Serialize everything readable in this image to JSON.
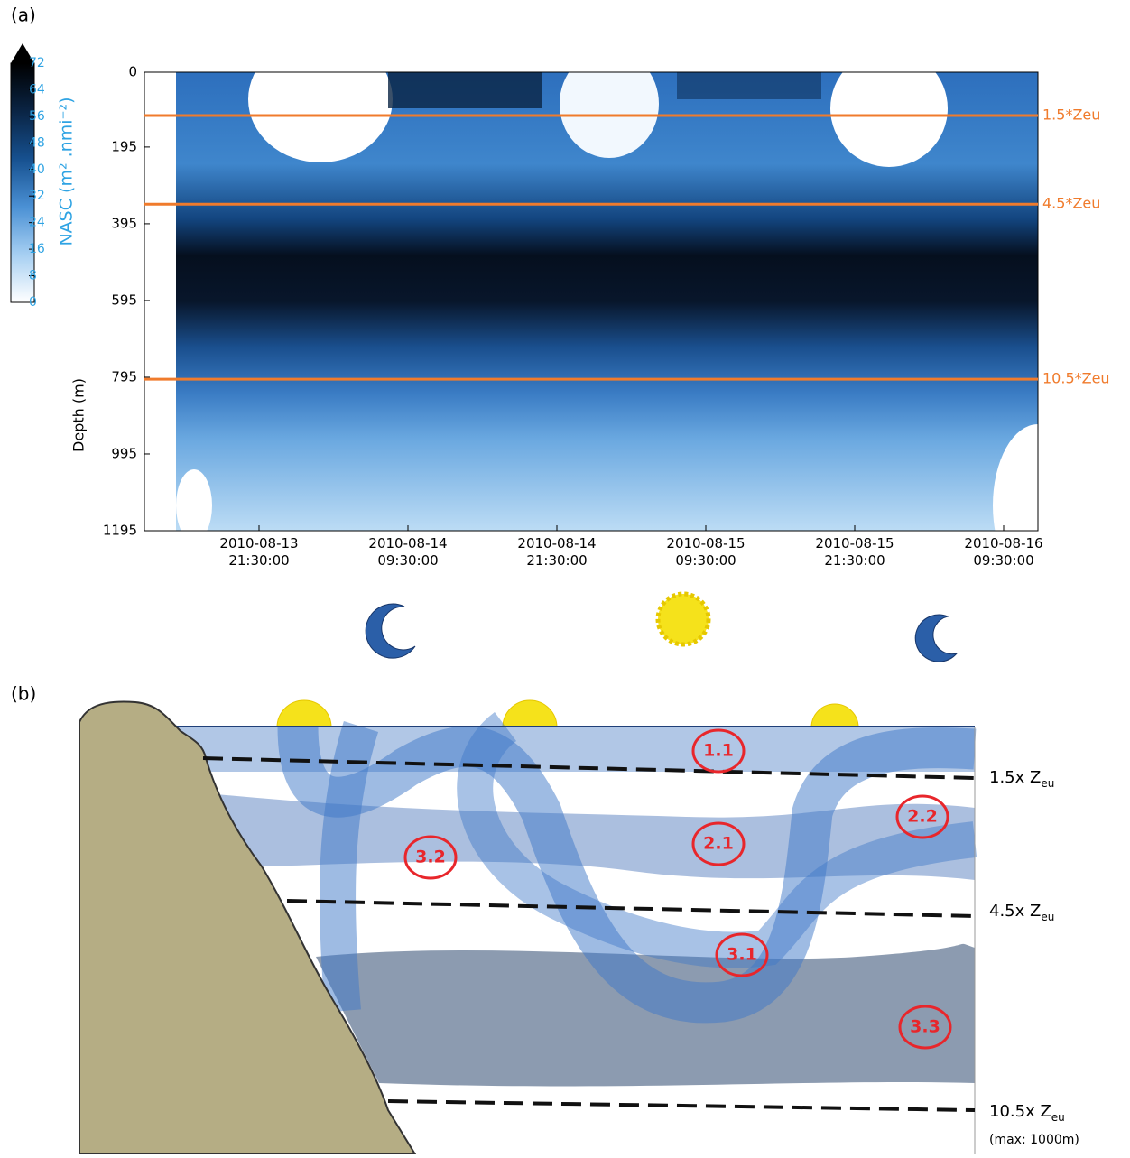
{
  "panel_labels": [
    "(a)",
    "(b)"
  ],
  "chart_data": {
    "type": "heatmap",
    "y_label": "Depth (m)",
    "ylim": [
      0,
      1195
    ],
    "y_inverted": true,
    "yticks": [
      0,
      195,
      395,
      595,
      795,
      995,
      1195
    ],
    "x_tick_labels": [
      [
        "2010-08-13",
        "21:30:00"
      ],
      [
        "2010-08-14",
        "09:30:00"
      ],
      [
        "2010-08-14",
        "21:30:00"
      ],
      [
        "2010-08-15",
        "09:30:00"
      ],
      [
        "2010-08-15",
        "21:30:00"
      ],
      [
        "2010-08-16",
        "09:30:00"
      ]
    ],
    "colorbar": {
      "label": "NASC (m² .nmi⁻²)",
      "clim": [
        0,
        72
      ],
      "ticks": [
        0,
        8,
        16,
        24,
        32,
        40,
        48,
        56,
        64,
        72
      ],
      "colors": [
        "#ffffff",
        "#a6cff2",
        "#4a90d4",
        "#16508f",
        "#0a2444",
        "#000000"
      ],
      "label_color": "#2ea3e3"
    },
    "reference_lines": [
      {
        "label": "1.5*Zeu",
        "value": 113
      },
      {
        "label": "4.5*Zeu",
        "value": 344
      },
      {
        "label": "10.5*Zeu",
        "value": 800
      }
    ],
    "reference_color": "#f07b2c"
  },
  "diagram": {
    "zone_labels": [
      "1.1",
      "2.1",
      "2.2",
      "3.1",
      "3.2",
      "3.3"
    ],
    "depth_labels": [
      {
        "text": "1.5x Z",
        "sub": "eu"
      },
      {
        "text": "4.5x Z",
        "sub": "eu"
      },
      {
        "text": "10.5x Z",
        "sub": "eu"
      }
    ],
    "note": "(max: 1000m)"
  }
}
